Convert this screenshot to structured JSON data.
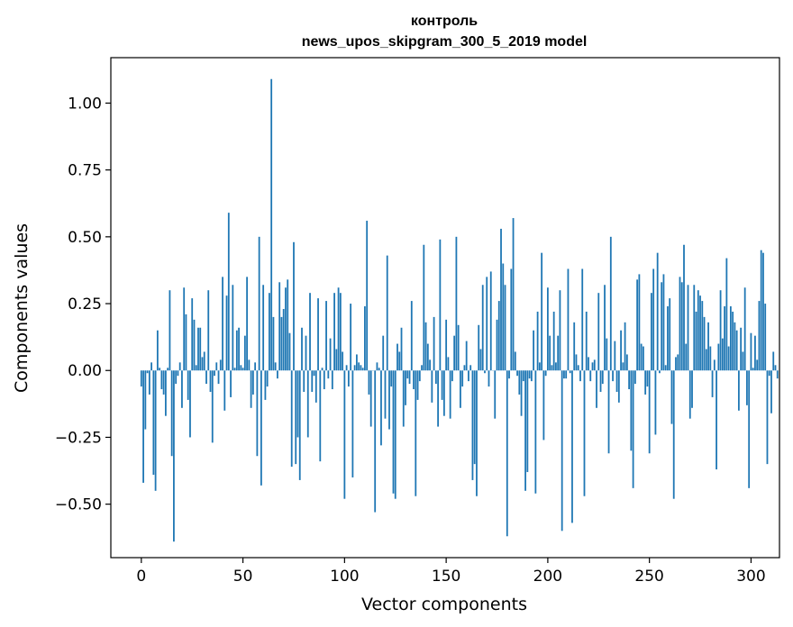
{
  "chart_data": {
    "type": "bar",
    "title_line1": "контроль",
    "title_line2": "news_upos_skipgram_300_5_2019 model",
    "xlabel": "Vector components",
    "ylabel": "Components values",
    "xlim": [
      -15,
      314
    ],
    "ylim": [
      -0.7,
      1.17
    ],
    "xticks": [
      0,
      50,
      100,
      150,
      200,
      250,
      300
    ],
    "xtick_labels": [
      "0",
      "50",
      "100",
      "150",
      "200",
      "250",
      "300"
    ],
    "yticks": [
      -0.5,
      -0.25,
      0.0,
      0.25,
      0.5,
      0.75,
      1.0
    ],
    "ytick_labels": [
      "−0.50",
      "−0.25",
      "0.00",
      "0.25",
      "0.50",
      "0.75",
      "1.00"
    ],
    "bar_color": "#1f77b4",
    "values": [
      -0.06,
      -0.42,
      -0.22,
      -0.01,
      -0.09,
      0.03,
      -0.39,
      -0.45,
      0.15,
      0.01,
      -0.07,
      -0.09,
      -0.17,
      0.01,
      0.3,
      -0.32,
      -0.64,
      -0.05,
      -0.02,
      0.03,
      -0.14,
      0.31,
      0.21,
      -0.11,
      -0.25,
      0.27,
      0.19,
      0.02,
      0.16,
      0.16,
      0.05,
      0.07,
      -0.05,
      0.3,
      -0.08,
      -0.27,
      -0.02,
      0.03,
      -0.05,
      0.04,
      0.35,
      -0.15,
      0.28,
      0.59,
      -0.1,
      0.32,
      0.01,
      0.15,
      0.16,
      0.02,
      0.01,
      0.13,
      0.35,
      0.04,
      -0.14,
      -0.09,
      0.03,
      -0.32,
      0.5,
      -0.43,
      0.32,
      -0.11,
      -0.06,
      0.29,
      1.09,
      0.2,
      0.03,
      -0.03,
      0.33,
      0.2,
      0.23,
      0.31,
      0.34,
      0.14,
      -0.36,
      0.48,
      -0.35,
      -0.25,
      -0.41,
      0.16,
      -0.08,
      0.13,
      -0.25,
      0.29,
      -0.08,
      -0.02,
      -0.12,
      0.27,
      -0.34,
      0.01,
      -0.07,
      0.26,
      -0.03,
      0.12,
      -0.07,
      0.29,
      0.08,
      0.31,
      0.29,
      0.07,
      -0.48,
      0.02,
      -0.06,
      0.25,
      -0.4,
      0.02,
      0.06,
      0.03,
      0.02,
      0.01,
      0.24,
      0.56,
      -0.09,
      -0.21,
      0.0,
      -0.53,
      0.03,
      0.01,
      -0.28,
      0.13,
      -0.18,
      0.43,
      -0.22,
      -0.06,
      -0.46,
      -0.48,
      0.1,
      0.07,
      0.16,
      -0.21,
      -0.13,
      -0.03,
      -0.05,
      0.26,
      -0.07,
      -0.47,
      -0.11,
      -0.04,
      0.02,
      0.47,
      0.18,
      0.1,
      0.04,
      -0.12,
      0.2,
      -0.05,
      -0.21,
      0.49,
      -0.11,
      -0.17,
      0.19,
      0.05,
      -0.18,
      -0.04,
      0.13,
      0.5,
      0.17,
      -0.14,
      -0.06,
      0.02,
      0.11,
      -0.04,
      0.02,
      -0.41,
      -0.35,
      -0.47,
      0.17,
      0.08,
      0.32,
      -0.01,
      0.35,
      -0.06,
      0.37,
      0.0,
      -0.18,
      0.19,
      0.26,
      0.53,
      0.4,
      0.32,
      -0.62,
      -0.03,
      0.38,
      0.57,
      0.07,
      -0.02,
      -0.09,
      -0.17,
      -0.04,
      -0.45,
      -0.38,
      -0.03,
      -0.04,
      0.15,
      -0.46,
      0.22,
      0.03,
      0.44,
      -0.26,
      -0.02,
      0.31,
      0.13,
      0.02,
      0.22,
      0.03,
      0.13,
      0.3,
      -0.6,
      -0.03,
      -0.03,
      0.38,
      -0.01,
      -0.57,
      0.18,
      0.06,
      0.02,
      -0.04,
      0.38,
      -0.47,
      0.22,
      0.05,
      -0.04,
      0.03,
      0.04,
      -0.14,
      0.29,
      -0.08,
      -0.05,
      0.32,
      0.12,
      -0.31,
      0.5,
      -0.04,
      0.11,
      -0.08,
      -0.12,
      0.15,
      0.03,
      0.18,
      0.06,
      -0.07,
      -0.3,
      -0.44,
      -0.05,
      0.34,
      0.36,
      0.1,
      0.09,
      -0.09,
      -0.06,
      -0.31,
      0.29,
      0.38,
      -0.24,
      0.44,
      -0.01,
      0.33,
      0.36,
      0.02,
      0.24,
      0.27,
      -0.2,
      -0.48,
      0.05,
      0.06,
      0.35,
      0.33,
      0.47,
      0.1,
      0.32,
      -0.18,
      -0.14,
      0.32,
      0.22,
      0.3,
      0.28,
      0.26,
      0.2,
      0.08,
      0.18,
      0.09,
      -0.1,
      0.04,
      -0.37,
      0.1,
      0.3,
      0.12,
      0.24,
      0.42,
      0.09,
      0.24,
      0.22,
      0.18,
      0.15,
      -0.15,
      0.16,
      0.07,
      0.31,
      -0.13,
      -0.44,
      0.14,
      0.01,
      0.13,
      0.04,
      0.26,
      0.45,
      0.44,
      0.25,
      -0.35,
      -0.02,
      -0.16,
      0.07,
      0.02,
      -0.03
    ]
  }
}
